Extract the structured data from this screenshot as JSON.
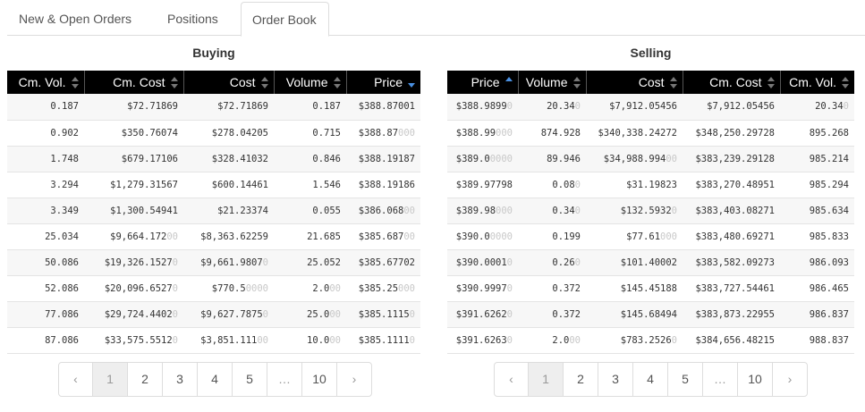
{
  "tabs": [
    {
      "label": "New & Open Orders"
    },
    {
      "label": "Positions"
    },
    {
      "label": "Order Book"
    }
  ],
  "buying": {
    "title": "Buying",
    "columns": [
      "Cm. Vol.",
      "Cm. Cost",
      "Cost",
      "Volume",
      "Price"
    ],
    "rows": [
      [
        "0.187",
        "$72.71869",
        "$72.71869",
        "0.187",
        "$388.87001"
      ],
      [
        "0.902",
        "$350.76074",
        "$278.04205",
        "0.715",
        "$388.87|000"
      ],
      [
        "1.748",
        "$679.17106",
        "$328.41032",
        "0.846",
        "$388.19187"
      ],
      [
        "3.294",
        "$1,279.31567",
        "$600.14461",
        "1.546",
        "$388.19186"
      ],
      [
        "3.349",
        "$1,300.54941",
        "$21.23374",
        "0.055",
        "$386.068|00"
      ],
      [
        "25.034",
        "$9,664.172|00",
        "$8,363.62259",
        "21.685",
        "$385.687|00"
      ],
      [
        "50.086",
        "$19,326.1527|0",
        "$9,661.9807|0",
        "25.052",
        "$385.67702"
      ],
      [
        "52.086",
        "$20,096.6527|0",
        "$770.5|0000",
        "2.0|00",
        "$385.25|000"
      ],
      [
        "77.086",
        "$29,724.4402|0",
        "$9,627.7875|0",
        "25.0|00",
        "$385.1115|0"
      ],
      [
        "87.086",
        "$33,575.5512|0",
        "$3,851.111|00",
        "10.0|00",
        "$385.1111|0"
      ]
    ]
  },
  "selling": {
    "title": "Selling",
    "columns": [
      "Price",
      "Volume",
      "Cost",
      "Cm. Cost",
      "Cm. Vol."
    ],
    "rows": [
      [
        "$388.9899|0",
        "20.34|0",
        "$7,912.05456",
        "$7,912.05456",
        "20.34|0"
      ],
      [
        "$388.99|000",
        "874.928",
        "$340,338.24272",
        "$348,250.29728",
        "895.268"
      ],
      [
        "$389.0|0000",
        "89.946",
        "$34,988.994|00",
        "$383,239.29128",
        "985.214"
      ],
      [
        "$389.97798",
        "0.08|0",
        "$31.19823",
        "$383,270.48951",
        "985.294"
      ],
      [
        "$389.98|000",
        "0.34|0",
        "$132.5932|0",
        "$383,403.08271",
        "985.634"
      ],
      [
        "$390.0|0000",
        "0.199",
        "$77.61|000",
        "$383,480.69271",
        "985.833"
      ],
      [
        "$390.0001|0",
        "0.26|0",
        "$101.40002",
        "$383,582.09273",
        "986.093"
      ],
      [
        "$390.9997|0",
        "0.372",
        "$145.45188",
        "$383,727.54461",
        "986.465"
      ],
      [
        "$391.6262|0",
        "0.372",
        "$145.68494",
        "$383,873.22955",
        "986.837"
      ],
      [
        "$391.6263|0",
        "2.0|00",
        "$783.2526|0",
        "$384,656.48215",
        "988.837"
      ]
    ]
  },
  "pagination": {
    "prev": "‹",
    "next": "›",
    "pages": [
      "1",
      "2",
      "3",
      "4",
      "5",
      "…",
      "10"
    ],
    "active": "1"
  },
  "colors": {
    "header_bg": "#000000",
    "sort_active": "#4a90e2",
    "dim_digits": "#c8c8c8"
  }
}
